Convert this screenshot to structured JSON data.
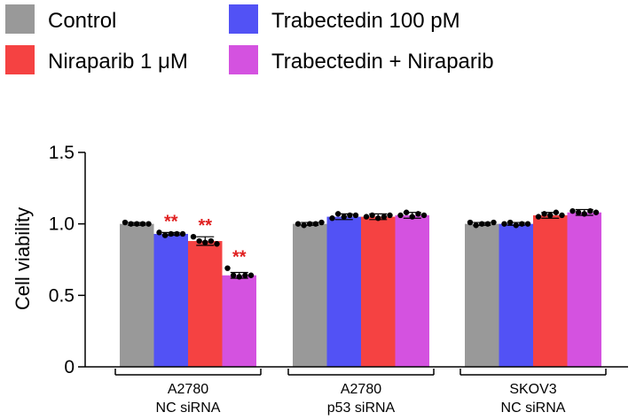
{
  "chart_data": {
    "type": "bar",
    "ylabel": "Cell viability",
    "ylim": [
      0,
      1.5
    ],
    "yticks": [
      0,
      0.5,
      1.0,
      1.5
    ],
    "ytick_labels": [
      "0",
      "0.5",
      "1.0",
      "1.5"
    ],
    "legend_position": "top",
    "groups": [
      {
        "line1": "A2780",
        "line2": "NC siRNA"
      },
      {
        "line1": "A2780",
        "line2": "p53 siRNA"
      },
      {
        "line1": "SKOV3",
        "line2": "NC siRNA"
      }
    ],
    "series": [
      {
        "name": "Control",
        "color": "#999999",
        "values": [
          1.0,
          1.0,
          1.0
        ],
        "errors": [
          0.01,
          0.01,
          0.01
        ],
        "points": [
          [
            1.01,
            1.0,
            1.0,
            1.0,
            1.0
          ],
          [
            1.0,
            0.99,
            1.0,
            1.0,
            1.01
          ],
          [
            1.01,
            0.99,
            1.0,
            1.0,
            1.01
          ]
        ],
        "significance": [
          "",
          "",
          ""
        ]
      },
      {
        "name": "Trabectedin 100 pM",
        "color": "#5252f5",
        "values": [
          0.93,
          1.05,
          1.0
        ],
        "errors": [
          0.01,
          0.02,
          0.01
        ],
        "points": [
          [
            0.94,
            0.92,
            0.93,
            0.93,
            0.93
          ],
          [
            1.04,
            1.07,
            1.05,
            1.06,
            1.06
          ],
          [
            1.0,
            1.01,
            0.99,
            1.0,
            1.0
          ]
        ],
        "significance": [
          "**",
          "",
          ""
        ]
      },
      {
        "name": "Niraparib 1 μM",
        "color": "#f54242",
        "values": [
          0.88,
          1.05,
          1.06
        ],
        "errors": [
          0.03,
          0.02,
          0.02
        ],
        "points": [
          [
            0.91,
            0.88,
            0.87,
            0.88,
            0.86
          ],
          [
            1.05,
            1.06,
            1.04,
            1.05,
            1.06
          ],
          [
            1.05,
            1.07,
            1.06,
            1.08,
            1.06
          ]
        ],
        "significance": [
          "**",
          "",
          ""
        ]
      },
      {
        "name": "Trabectedin + Niraparib",
        "color": "#d452e0",
        "values": [
          0.64,
          1.06,
          1.08
        ],
        "errors": [
          0.02,
          0.02,
          0.02
        ],
        "points": [
          [
            0.69,
            0.64,
            0.63,
            0.64,
            0.64
          ],
          [
            1.06,
            1.08,
            1.05,
            1.07,
            1.06
          ],
          [
            1.09,
            1.08,
            1.07,
            1.09,
            1.08
          ]
        ],
        "significance": [
          "**",
          "",
          ""
        ]
      }
    ],
    "significance_color": "#e02020"
  }
}
